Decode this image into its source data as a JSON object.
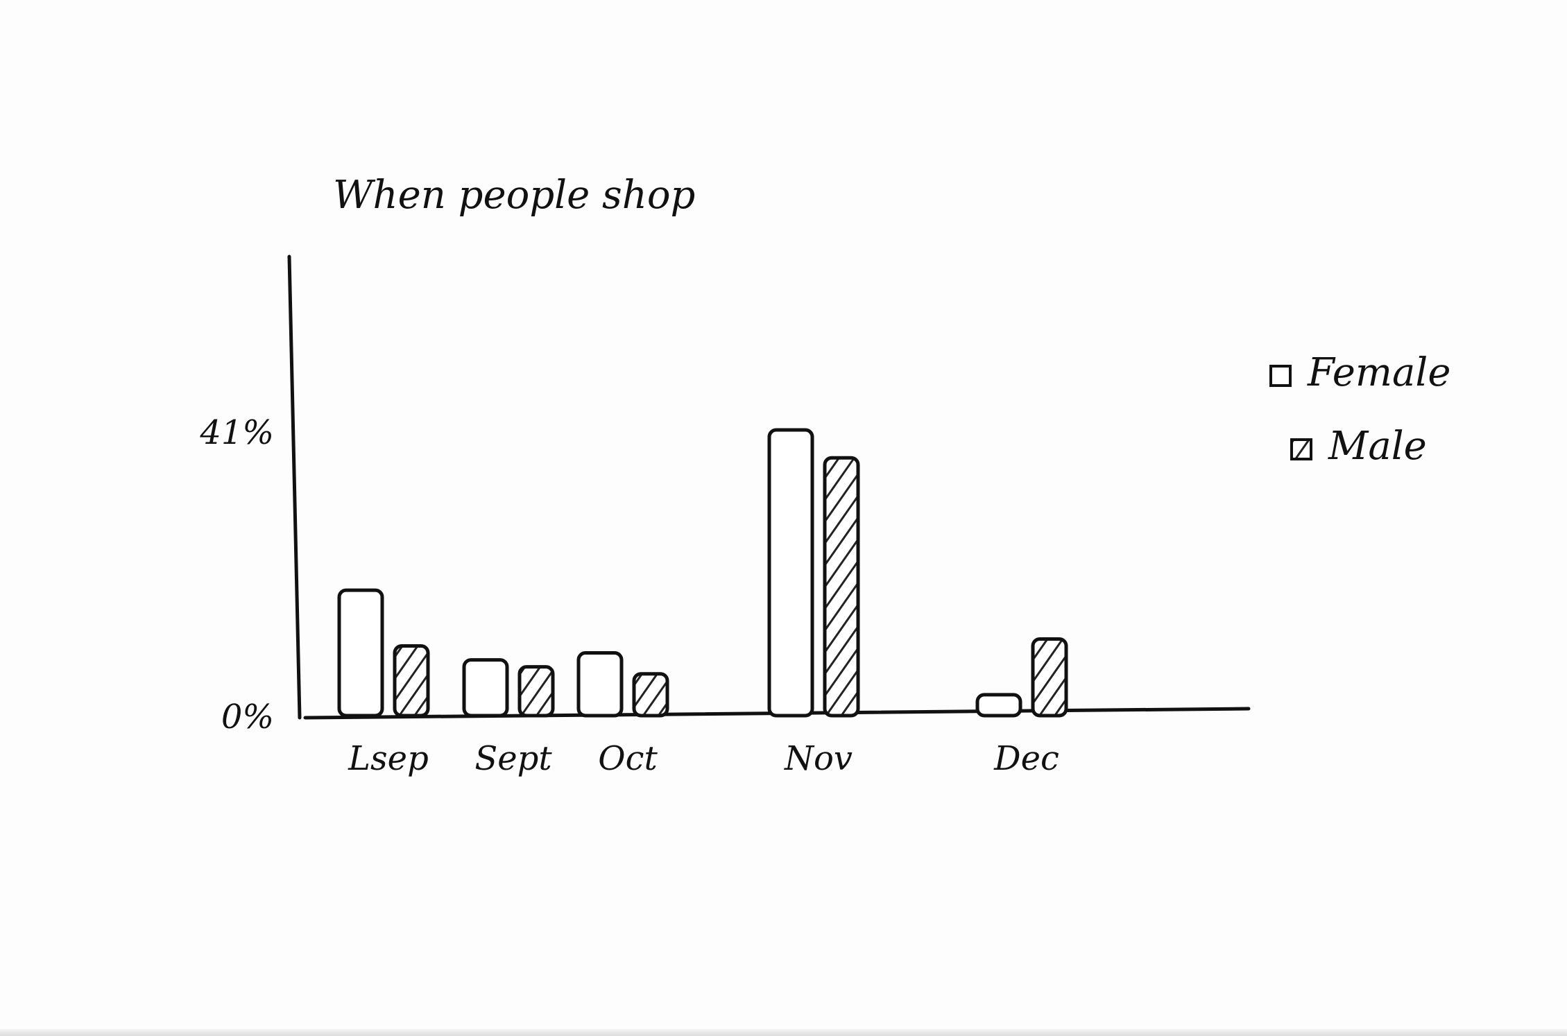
{
  "colors": {
    "ink": "#111111",
    "paper": "#fdfdfd",
    "female_fill": "#ffffff",
    "male_fill": "#9a9a9a"
  },
  "chart_data": {
    "type": "bar",
    "title": "When people shop",
    "categories": [
      "Lsep",
      "Sept",
      "Oct",
      "Nov",
      "Dec"
    ],
    "series": [
      {
        "name": "Female",
        "values": [
          18,
          8,
          9,
          41,
          3
        ]
      },
      {
        "name": "Male",
        "values": [
          10,
          7,
          6,
          37,
          11
        ]
      }
    ],
    "yticks": [
      "0%",
      "41%"
    ],
    "ytick_values": [
      0,
      41
    ],
    "ylim": [
      0,
      41
    ],
    "xlabel": "",
    "ylabel": "",
    "grid": false,
    "legend": "right"
  }
}
